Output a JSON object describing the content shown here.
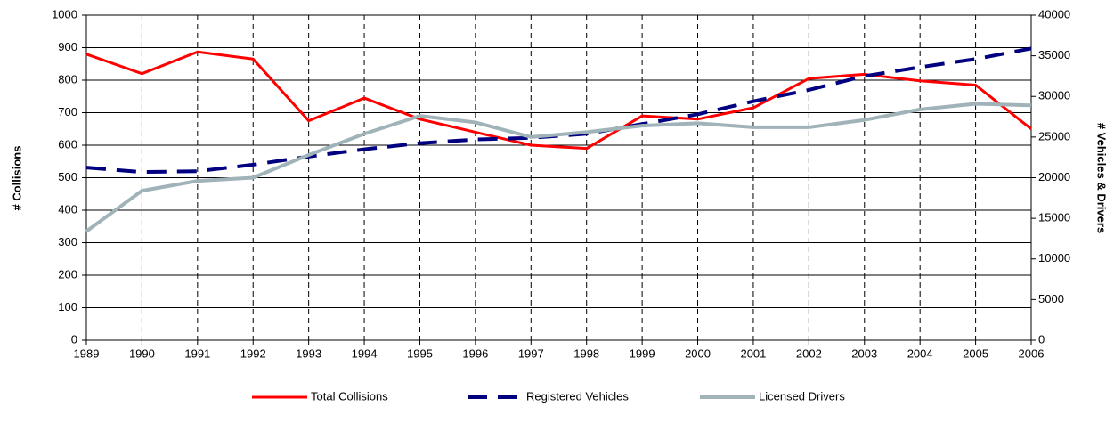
{
  "chart_data": {
    "type": "line",
    "categories": [
      "1989",
      "1990",
      "1991",
      "1992",
      "1993",
      "1994",
      "1995",
      "1996",
      "1997",
      "1998",
      "1999",
      "2000",
      "2001",
      "2002",
      "2003",
      "2004",
      "2005",
      "2006"
    ],
    "y_label": "# Collisions",
    "y2_label": "# Vehicles & Drivers",
    "ylim": [
      0,
      1000
    ],
    "yticks": [
      0,
      100,
      200,
      300,
      400,
      500,
      600,
      700,
      800,
      900,
      1000
    ],
    "y2lim": [
      0,
      40000
    ],
    "y2ticks": [
      0,
      5000,
      10000,
      15000,
      20000,
      25000,
      30000,
      35000,
      40000
    ],
    "grid": true,
    "legend": "bottom",
    "series": [
      {
        "name": "Total Collisions",
        "color": "#ff0000",
        "style": "solid",
        "values": [
          880,
          820,
          887,
          865,
          675,
          745,
          680,
          640,
          600,
          590,
          690,
          680,
          715,
          805,
          818,
          798,
          785,
          650
        ]
      },
      {
        "name": "Registered Vehicles",
        "color": "#000080",
        "style": "dashed",
        "axis": "y2",
        "values": [
          21250,
          20700,
          20800,
          21600,
          22600,
          23500,
          24250,
          24700,
          24900,
          25400,
          26600,
          27800,
          29400,
          30800,
          32500,
          33600,
          34600,
          35900
        ]
      },
      {
        "name": "Licensed Drivers",
        "color": "#9fb3b8",
        "style": "textured",
        "axis": "y2",
        "values": [
          13400,
          18400,
          19600,
          20000,
          22800,
          25400,
          27600,
          26800,
          25000,
          25600,
          26400,
          26700,
          26200,
          26200,
          27100,
          28400,
          29100,
          28900
        ]
      }
    ]
  }
}
